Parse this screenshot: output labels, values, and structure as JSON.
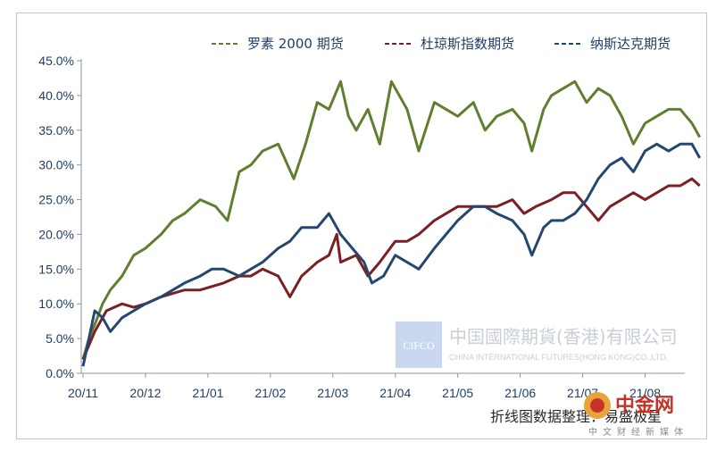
{
  "chart_data": {
    "type": "line",
    "title": "",
    "xlabel": "",
    "ylabel": "",
    "ylim": [
      0,
      45
    ],
    "yticks": [
      "0.0%",
      "5.0%",
      "10.0%",
      "15.0%",
      "20.0%",
      "25.0%",
      "30.0%",
      "35.0%",
      "40.0%",
      "45.0%"
    ],
    "xticks": [
      "20/11",
      "20/12",
      "21/01",
      "21/02",
      "21/03",
      "21/04",
      "21/05",
      "21/06",
      "21/07",
      "21/08"
    ],
    "legend_position": "top-right",
    "series": [
      {
        "name": "罗素 2000 期货",
        "color": "#5f7f2e",
        "points": [
          [
            0,
            2
          ],
          [
            0.15,
            5
          ],
          [
            0.3,
            7
          ],
          [
            0.5,
            10
          ],
          [
            0.7,
            12
          ],
          [
            1,
            14
          ],
          [
            1.3,
            17
          ],
          [
            1.6,
            18
          ],
          [
            2,
            20
          ],
          [
            2.3,
            22
          ],
          [
            2.6,
            23
          ],
          [
            3,
            25
          ],
          [
            3.4,
            24
          ],
          [
            3.7,
            22
          ],
          [
            4,
            29
          ],
          [
            4.3,
            30
          ],
          [
            4.6,
            32
          ],
          [
            5,
            33
          ],
          [
            5.4,
            28
          ],
          [
            5.7,
            33
          ],
          [
            6,
            39
          ],
          [
            6.3,
            38
          ],
          [
            6.6,
            42
          ],
          [
            6.8,
            37
          ],
          [
            7,
            35
          ],
          [
            7.3,
            38
          ],
          [
            7.6,
            33
          ],
          [
            7.9,
            42
          ],
          [
            8.3,
            38
          ],
          [
            8.6,
            32
          ],
          [
            9,
            39
          ],
          [
            9.3,
            38
          ],
          [
            9.6,
            37
          ],
          [
            10,
            39
          ],
          [
            10.3,
            35
          ],
          [
            10.6,
            37
          ],
          [
            11,
            38
          ],
          [
            11.3,
            36
          ],
          [
            11.5,
            32
          ],
          [
            11.8,
            38
          ],
          [
            12,
            40
          ],
          [
            12.3,
            41
          ],
          [
            12.6,
            42
          ],
          [
            12.9,
            39
          ],
          [
            13.2,
            41
          ],
          [
            13.5,
            40
          ],
          [
            13.8,
            37
          ],
          [
            14.1,
            33
          ],
          [
            14.4,
            36
          ],
          [
            14.7,
            37
          ],
          [
            15,
            38
          ],
          [
            15.3,
            38
          ],
          [
            15.6,
            36
          ],
          [
            15.8,
            34
          ]
        ]
      },
      {
        "name": "杜琼斯指数期货",
        "color": "#7a2024",
        "points": [
          [
            0,
            2
          ],
          [
            0.3,
            6
          ],
          [
            0.6,
            9
          ],
          [
            1,
            10
          ],
          [
            1.3,
            9.5
          ],
          [
            1.6,
            10
          ],
          [
            2,
            11
          ],
          [
            2.3,
            11.5
          ],
          [
            2.6,
            12
          ],
          [
            3,
            12
          ],
          [
            3.3,
            12.5
          ],
          [
            3.6,
            13
          ],
          [
            4,
            14
          ],
          [
            4.3,
            14
          ],
          [
            4.6,
            15
          ],
          [
            5,
            14
          ],
          [
            5.3,
            11
          ],
          [
            5.6,
            14
          ],
          [
            6,
            16
          ],
          [
            6.3,
            17
          ],
          [
            6.5,
            20
          ],
          [
            6.6,
            16
          ],
          [
            7,
            17
          ],
          [
            7.3,
            14
          ],
          [
            7.6,
            16
          ],
          [
            8,
            19
          ],
          [
            8.3,
            19
          ],
          [
            8.6,
            20
          ],
          [
            9,
            22
          ],
          [
            9.3,
            23
          ],
          [
            9.6,
            24
          ],
          [
            10,
            24
          ],
          [
            10.3,
            24
          ],
          [
            10.6,
            24
          ],
          [
            11,
            25
          ],
          [
            11.3,
            23
          ],
          [
            11.6,
            24
          ],
          [
            12,
            25
          ],
          [
            12.3,
            26
          ],
          [
            12.6,
            26
          ],
          [
            12.9,
            24
          ],
          [
            13.2,
            22
          ],
          [
            13.5,
            24
          ],
          [
            13.8,
            25
          ],
          [
            14.1,
            26
          ],
          [
            14.4,
            25
          ],
          [
            14.7,
            26
          ],
          [
            15,
            27
          ],
          [
            15.3,
            27
          ],
          [
            15.6,
            28
          ],
          [
            15.8,
            27
          ]
        ]
      },
      {
        "name": "纳斯达克期货",
        "color": "#24476f",
        "points": [
          [
            0,
            1
          ],
          [
            0.15,
            5
          ],
          [
            0.3,
            9
          ],
          [
            0.5,
            8
          ],
          [
            0.7,
            6
          ],
          [
            1,
            8
          ],
          [
            1.3,
            9
          ],
          [
            1.6,
            10
          ],
          [
            2,
            11
          ],
          [
            2.3,
            12
          ],
          [
            2.6,
            13
          ],
          [
            3,
            14
          ],
          [
            3.3,
            15
          ],
          [
            3.6,
            15
          ],
          [
            4,
            14
          ],
          [
            4.3,
            15
          ],
          [
            4.6,
            16
          ],
          [
            5,
            18
          ],
          [
            5.3,
            19
          ],
          [
            5.6,
            21
          ],
          [
            6,
            21
          ],
          [
            6.3,
            23
          ],
          [
            6.6,
            20
          ],
          [
            6.9,
            18
          ],
          [
            7.2,
            16
          ],
          [
            7.4,
            13
          ],
          [
            7.7,
            14
          ],
          [
            8,
            17
          ],
          [
            8.3,
            16
          ],
          [
            8.6,
            15
          ],
          [
            9,
            18
          ],
          [
            9.3,
            20
          ],
          [
            9.6,
            22
          ],
          [
            10,
            24
          ],
          [
            10.3,
            24
          ],
          [
            10.6,
            23
          ],
          [
            11,
            22
          ],
          [
            11.3,
            20
          ],
          [
            11.5,
            17
          ],
          [
            11.8,
            21
          ],
          [
            12,
            22
          ],
          [
            12.3,
            22
          ],
          [
            12.6,
            23
          ],
          [
            12.9,
            25
          ],
          [
            13.2,
            28
          ],
          [
            13.5,
            30
          ],
          [
            13.8,
            31
          ],
          [
            14.1,
            29
          ],
          [
            14.4,
            32
          ],
          [
            14.7,
            33
          ],
          [
            15,
            32
          ],
          [
            15.3,
            33
          ],
          [
            15.6,
            33
          ],
          [
            15.8,
            31
          ]
        ]
      }
    ]
  },
  "watermark": {
    "cn": "中国國際期貨(香港)有限公司",
    "en": "CHINA INTERNATIONAL FUTURES(HONG KONG)CO.,LTD.",
    "logo": "CIFCO"
  },
  "source_note": "折线图数据整理：易盛极星",
  "brand": {
    "name": "中金网",
    "sub": "中文财经新媒体",
    "color": "#c83226"
  }
}
